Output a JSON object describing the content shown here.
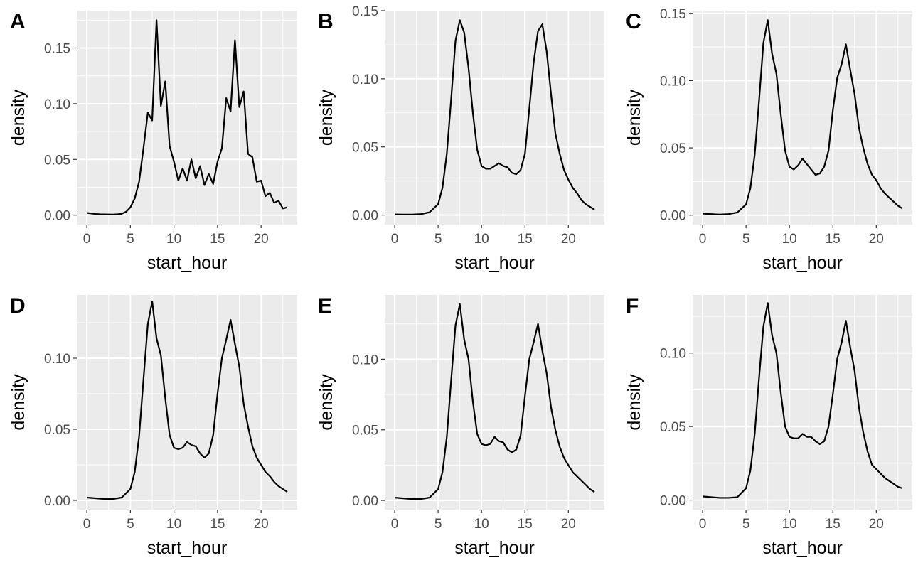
{
  "chart_data": [
    {
      "panel": "A",
      "type": "line",
      "xlabel": "start_hour",
      "ylabel": "density",
      "xlim": [
        -1.15,
        24.15
      ],
      "ylim": [
        -0.0085,
        0.1835
      ],
      "xticks": [
        0,
        5,
        10,
        15,
        20
      ],
      "yticks": [
        0.0,
        0.05,
        0.1,
        0.15
      ],
      "ytick_labels": [
        "0.00",
        "0.05",
        "0.10",
        "0.15"
      ],
      "grid": true,
      "x": [
        0,
        0.5,
        1,
        1.5,
        2,
        2.5,
        3,
        3.5,
        4,
        4.5,
        5,
        5.5,
        6,
        6.5,
        7,
        7.5,
        8,
        8.5,
        9,
        9.5,
        10,
        10.5,
        11,
        11.5,
        12,
        12.5,
        13,
        13.5,
        14,
        14.5,
        15,
        15.5,
        16,
        16.5,
        17,
        17.5,
        18,
        18.5,
        19,
        19.5,
        20,
        20.5,
        21,
        21.5,
        22,
        22.5,
        23
      ],
      "y": [
        0.002,
        0.0015,
        0.001,
        0.0008,
        0.0007,
        0.0006,
        0.0005,
        0.0008,
        0.0012,
        0.003,
        0.007,
        0.015,
        0.03,
        0.06,
        0.092,
        0.085,
        0.175,
        0.098,
        0.12,
        0.062,
        0.048,
        0.031,
        0.042,
        0.031,
        0.05,
        0.033,
        0.044,
        0.027,
        0.037,
        0.028,
        0.048,
        0.06,
        0.105,
        0.093,
        0.157,
        0.097,
        0.111,
        0.055,
        0.052,
        0.03,
        0.031,
        0.017,
        0.02,
        0.011,
        0.013,
        0.006,
        0.007
      ]
    },
    {
      "panel": "B",
      "type": "line",
      "xlabel": "start_hour",
      "ylabel": "density",
      "xlim": [
        -1.15,
        24.15
      ],
      "ylim": [
        -0.007,
        0.15
      ],
      "xticks": [
        0,
        5,
        10,
        15,
        20
      ],
      "yticks": [
        0.0,
        0.05,
        0.1,
        0.15
      ],
      "ytick_labels": [
        "0.00",
        "0.05",
        "0.10",
        "0.15"
      ],
      "grid": true,
      "x": [
        0,
        1,
        2,
        3,
        4,
        5,
        5.5,
        6,
        6.5,
        7,
        7.5,
        8,
        8.5,
        9,
        9.5,
        10,
        10.5,
        11,
        11.5,
        12,
        12.5,
        13,
        13.5,
        14,
        14.5,
        15,
        15.5,
        16,
        16.5,
        17,
        17.5,
        18,
        18.5,
        19,
        19.5,
        20,
        20.5,
        21,
        21.5,
        22,
        22.5,
        23
      ],
      "y": [
        0.0005,
        0.0004,
        0.0004,
        0.0007,
        0.002,
        0.008,
        0.02,
        0.045,
        0.085,
        0.128,
        0.143,
        0.134,
        0.108,
        0.075,
        0.048,
        0.036,
        0.034,
        0.034,
        0.036,
        0.038,
        0.036,
        0.035,
        0.031,
        0.03,
        0.033,
        0.045,
        0.078,
        0.112,
        0.135,
        0.14,
        0.12,
        0.089,
        0.06,
        0.045,
        0.033,
        0.026,
        0.02,
        0.016,
        0.011,
        0.008,
        0.006,
        0.004
      ]
    },
    {
      "panel": "C",
      "type": "line",
      "xlabel": "start_hour",
      "ylabel": "density",
      "xlim": [
        -1.15,
        24.15
      ],
      "ylim": [
        -0.007,
        0.152
      ],
      "xticks": [
        0,
        5,
        10,
        15,
        20
      ],
      "yticks": [
        0.0,
        0.05,
        0.1,
        0.15
      ],
      "ytick_labels": [
        "0.00",
        "0.05",
        "0.10",
        "0.15"
      ],
      "grid": true,
      "x": [
        0,
        1,
        2,
        3,
        4,
        5,
        5.5,
        6,
        6.5,
        7,
        7.5,
        8,
        8.5,
        9,
        9.5,
        10,
        10.5,
        11,
        11.5,
        12,
        12.5,
        13,
        13.5,
        14,
        14.5,
        15,
        15.5,
        16,
        16.5,
        17,
        17.5,
        18,
        18.5,
        19,
        19.5,
        20,
        20.5,
        21,
        21.5,
        22,
        22.5,
        23
      ],
      "y": [
        0.0012,
        0.0008,
        0.0005,
        0.0008,
        0.002,
        0.008,
        0.02,
        0.045,
        0.085,
        0.128,
        0.145,
        0.12,
        0.105,
        0.075,
        0.048,
        0.036,
        0.034,
        0.037,
        0.042,
        0.038,
        0.034,
        0.03,
        0.031,
        0.036,
        0.048,
        0.078,
        0.102,
        0.112,
        0.127,
        0.108,
        0.09,
        0.065,
        0.05,
        0.038,
        0.03,
        0.026,
        0.02,
        0.016,
        0.013,
        0.01,
        0.007,
        0.005
      ]
    },
    {
      "panel": "D",
      "type": "line",
      "xlabel": "start_hour",
      "ylabel": "density",
      "xlim": [
        -1.15,
        24.15
      ],
      "ylim": [
        -0.0065,
        0.1445
      ],
      "xticks": [
        0,
        5,
        10,
        15,
        20
      ],
      "yticks": [
        0.0,
        0.05,
        0.1
      ],
      "ytick_labels": [
        "0.00",
        "0.05",
        "0.10"
      ],
      "grid": true,
      "x": [
        0,
        1,
        2,
        3,
        4,
        5,
        5.5,
        6,
        6.5,
        7,
        7.5,
        8,
        8.5,
        9,
        9.5,
        10,
        10.5,
        11,
        11.5,
        12,
        12.5,
        13,
        13.5,
        14,
        14.5,
        15,
        15.5,
        16,
        16.5,
        17,
        17.5,
        18,
        18.5,
        19,
        19.5,
        20,
        20.5,
        21,
        21.5,
        22,
        22.5,
        23
      ],
      "y": [
        0.002,
        0.0015,
        0.001,
        0.001,
        0.002,
        0.008,
        0.02,
        0.045,
        0.085,
        0.124,
        0.14,
        0.114,
        0.102,
        0.072,
        0.046,
        0.037,
        0.036,
        0.037,
        0.041,
        0.039,
        0.038,
        0.033,
        0.03,
        0.033,
        0.046,
        0.075,
        0.1,
        0.113,
        0.127,
        0.11,
        0.094,
        0.068,
        0.052,
        0.038,
        0.03,
        0.025,
        0.02,
        0.017,
        0.013,
        0.01,
        0.008,
        0.006
      ]
    },
    {
      "panel": "E",
      "type": "line",
      "xlabel": "start_hour",
      "ylabel": "density",
      "xlim": [
        -1.15,
        24.15
      ],
      "ylim": [
        -0.0065,
        0.1455
      ],
      "xticks": [
        0,
        5,
        10,
        15,
        20
      ],
      "yticks": [
        0.0,
        0.05,
        0.1
      ],
      "ytick_labels": [
        "0.00",
        "0.05",
        "0.10"
      ],
      "grid": true,
      "x": [
        0,
        1,
        2,
        3,
        4,
        5,
        5.5,
        6,
        6.5,
        7,
        7.5,
        8,
        8.5,
        9,
        9.5,
        10,
        10.5,
        11,
        11.5,
        12,
        12.5,
        13,
        13.5,
        14,
        14.5,
        15,
        15.5,
        16,
        16.5,
        17,
        17.5,
        18,
        18.5,
        19,
        19.5,
        20,
        20.5,
        21,
        21.5,
        22,
        22.5,
        23
      ],
      "y": [
        0.002,
        0.0015,
        0.001,
        0.001,
        0.002,
        0.008,
        0.02,
        0.045,
        0.085,
        0.124,
        0.139,
        0.114,
        0.1,
        0.07,
        0.047,
        0.04,
        0.039,
        0.04,
        0.045,
        0.042,
        0.041,
        0.036,
        0.034,
        0.036,
        0.046,
        0.074,
        0.1,
        0.112,
        0.125,
        0.106,
        0.09,
        0.066,
        0.05,
        0.038,
        0.03,
        0.025,
        0.02,
        0.017,
        0.014,
        0.011,
        0.008,
        0.006
      ]
    },
    {
      "panel": "F",
      "type": "line",
      "xlabel": "start_hour",
      "ylabel": "density",
      "xlim": [
        -1.15,
        24.15
      ],
      "ylim": [
        -0.0065,
        0.1395
      ],
      "xticks": [
        0,
        5,
        10,
        15,
        20
      ],
      "yticks": [
        0.0,
        0.05,
        0.1
      ],
      "ytick_labels": [
        "0.00",
        "0.05",
        "0.10"
      ],
      "grid": true,
      "x": [
        0,
        1,
        2,
        3,
        4,
        5,
        5.5,
        6,
        6.5,
        7,
        7.5,
        8,
        8.5,
        9,
        9.5,
        10,
        10.5,
        11,
        11.5,
        12,
        12.5,
        13,
        13.5,
        14,
        14.5,
        15,
        15.5,
        16,
        16.5,
        17,
        17.5,
        18,
        18.5,
        19,
        19.5,
        20,
        20.5,
        21,
        21.5,
        22,
        22.5,
        23
      ],
      "y": [
        0.0025,
        0.002,
        0.0015,
        0.0015,
        0.002,
        0.008,
        0.02,
        0.045,
        0.083,
        0.118,
        0.134,
        0.112,
        0.1,
        0.073,
        0.05,
        0.043,
        0.042,
        0.042,
        0.045,
        0.043,
        0.043,
        0.04,
        0.038,
        0.04,
        0.05,
        0.072,
        0.096,
        0.107,
        0.122,
        0.104,
        0.088,
        0.063,
        0.046,
        0.033,
        0.024,
        0.021,
        0.018,
        0.015,
        0.013,
        0.011,
        0.009,
        0.008
      ]
    }
  ]
}
